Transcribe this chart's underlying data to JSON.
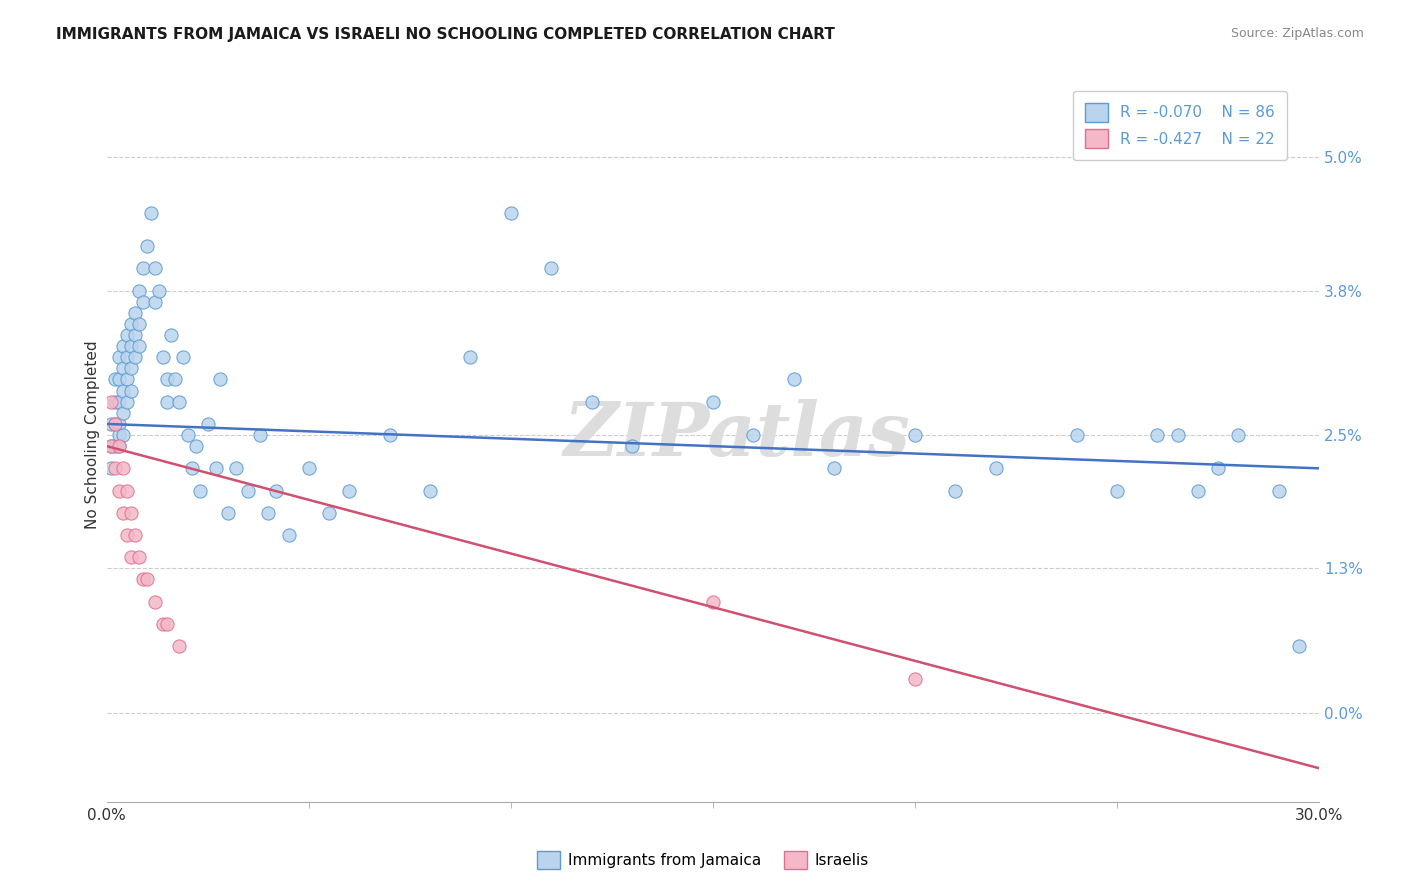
{
  "title": "IMMIGRANTS FROM JAMAICA VS ISRAELI NO SCHOOLING COMPLETED CORRELATION CHART",
  "source": "Source: ZipAtlas.com",
  "ylabel": "No Schooling Completed",
  "ytick_values": [
    0.0,
    0.013,
    0.025,
    0.038,
    0.05
  ],
  "ytick_labels": [
    "0.0%",
    "1.3%",
    "2.5%",
    "3.8%",
    "5.0%"
  ],
  "xmin": 0.0,
  "xmax": 0.3,
  "ymin": -0.008,
  "ymax": 0.058,
  "legend_r1": "-0.070",
  "legend_n1": "86",
  "legend_r2": "-0.427",
  "legend_n2": "22",
  "color_jamaica_fill": "#bad4ed",
  "color_jamaica_edge": "#5b9bd5",
  "color_israel_fill": "#f4b8c8",
  "color_israel_edge": "#e07090",
  "color_line_jamaica": "#4472c4",
  "color_line_israel": "#d05070",
  "watermark": "ZIPatlas",
  "jamaica_x": [
    0.001,
    0.001,
    0.001,
    0.002,
    0.002,
    0.002,
    0.002,
    0.003,
    0.003,
    0.003,
    0.003,
    0.003,
    0.003,
    0.004,
    0.004,
    0.004,
    0.004,
    0.004,
    0.005,
    0.005,
    0.005,
    0.005,
    0.006,
    0.006,
    0.006,
    0.006,
    0.007,
    0.007,
    0.007,
    0.008,
    0.008,
    0.008,
    0.009,
    0.009,
    0.01,
    0.011,
    0.012,
    0.012,
    0.013,
    0.014,
    0.015,
    0.015,
    0.016,
    0.017,
    0.018,
    0.019,
    0.02,
    0.021,
    0.022,
    0.023,
    0.025,
    0.027,
    0.028,
    0.03,
    0.032,
    0.035,
    0.038,
    0.04,
    0.042,
    0.045,
    0.05,
    0.055,
    0.06,
    0.07,
    0.08,
    0.09,
    0.1,
    0.11,
    0.12,
    0.13,
    0.15,
    0.16,
    0.17,
    0.18,
    0.2,
    0.21,
    0.22,
    0.24,
    0.25,
    0.26,
    0.265,
    0.27,
    0.275,
    0.28,
    0.29,
    0.295
  ],
  "jamaica_y": [
    0.026,
    0.024,
    0.022,
    0.03,
    0.028,
    0.026,
    0.024,
    0.032,
    0.03,
    0.028,
    0.026,
    0.025,
    0.024,
    0.033,
    0.031,
    0.029,
    0.027,
    0.025,
    0.034,
    0.032,
    0.03,
    0.028,
    0.035,
    0.033,
    0.031,
    0.029,
    0.036,
    0.034,
    0.032,
    0.038,
    0.035,
    0.033,
    0.04,
    0.037,
    0.042,
    0.045,
    0.04,
    0.037,
    0.038,
    0.032,
    0.03,
    0.028,
    0.034,
    0.03,
    0.028,
    0.032,
    0.025,
    0.022,
    0.024,
    0.02,
    0.026,
    0.022,
    0.03,
    0.018,
    0.022,
    0.02,
    0.025,
    0.018,
    0.02,
    0.016,
    0.022,
    0.018,
    0.02,
    0.025,
    0.02,
    0.032,
    0.045,
    0.04,
    0.028,
    0.024,
    0.028,
    0.025,
    0.03,
    0.022,
    0.025,
    0.02,
    0.022,
    0.025,
    0.02,
    0.025,
    0.025,
    0.02,
    0.022,
    0.025,
    0.02,
    0.006
  ],
  "israel_x": [
    0.001,
    0.001,
    0.002,
    0.002,
    0.003,
    0.003,
    0.004,
    0.004,
    0.005,
    0.005,
    0.006,
    0.006,
    0.007,
    0.008,
    0.009,
    0.01,
    0.012,
    0.014,
    0.015,
    0.018,
    0.15,
    0.2
  ],
  "israel_y": [
    0.028,
    0.024,
    0.026,
    0.022,
    0.024,
    0.02,
    0.022,
    0.018,
    0.02,
    0.016,
    0.018,
    0.014,
    0.016,
    0.014,
    0.012,
    0.012,
    0.01,
    0.008,
    0.008,
    0.006,
    0.01,
    0.003
  ],
  "jamaica_trend_x0": 0.0,
  "jamaica_trend_y0": 0.026,
  "jamaica_trend_x1": 0.3,
  "jamaica_trend_y1": 0.022,
  "israel_trend_x0": 0.0,
  "israel_trend_y0": 0.024,
  "israel_trend_x1": 0.3,
  "israel_trend_y1": -0.005
}
